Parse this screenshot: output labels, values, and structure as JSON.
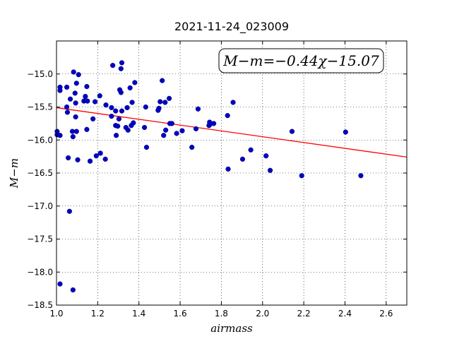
{
  "chart_data": {
    "type": "scatter",
    "title": "2021-11-24_023009",
    "xlabel": "airmass",
    "ylabel": "M−m",
    "xlim": [
      1.0,
      2.7
    ],
    "ylim": [
      -18.5,
      -14.5
    ],
    "y_inverted": true,
    "grid": true,
    "x_ticks": [
      1.0,
      1.2,
      1.4,
      1.6,
      1.8,
      2.0,
      2.2,
      2.4,
      2.6
    ],
    "x_tick_labels": [
      "1.0",
      "1.2",
      "1.4",
      "1.6",
      "1.8",
      "2.0",
      "2.2",
      "2.4",
      "2.6"
    ],
    "y_ticks": [
      -15.0,
      -15.5,
      -16.0,
      -16.5,
      -17.0,
      -17.5,
      -18.0,
      -18.5
    ],
    "y_tick_labels": [
      "−15.0",
      "−15.5",
      "−16.0",
      "−16.5",
      "−17.0",
      "−17.5",
      "−18.0",
      "−18.5"
    ],
    "annotation": "M−m=−0.44χ−15.07",
    "annotation_position": "top-right",
    "fit_line": {
      "slope": -0.44,
      "intercept": -15.07,
      "color": "#ff0000"
    },
    "marker_color": "#0000cc",
    "series": [
      {
        "x": [
          1.003,
          1.003,
          1.017,
          1.017,
          1.017,
          1.017,
          1.05,
          1.05,
          1.053,
          1.057,
          1.063,
          1.067,
          1.077,
          1.08,
          1.08,
          1.083,
          1.09,
          1.093,
          1.093,
          1.097,
          1.097,
          1.103,
          1.107,
          1.133,
          1.14,
          1.147,
          1.147,
          1.15,
          1.163,
          1.177,
          1.187,
          1.193,
          1.21,
          1.213,
          1.237,
          1.24,
          1.267,
          1.267,
          1.273,
          1.287,
          1.287,
          1.29,
          1.297,
          1.303,
          1.307,
          1.313,
          1.313,
          1.317,
          1.317,
          1.337,
          1.343,
          1.347,
          1.357,
          1.363,
          1.367,
          1.373,
          1.38,
          1.427,
          1.433,
          1.437,
          1.493,
          1.497,
          1.503,
          1.513,
          1.52,
          1.527,
          1.53,
          1.547,
          1.55,
          1.56,
          1.583,
          1.61,
          1.657,
          1.677,
          1.687,
          1.74,
          1.743,
          1.743,
          1.763,
          1.83,
          1.833,
          1.857,
          1.903,
          1.943,
          2.017,
          2.037,
          2.143,
          2.19,
          2.403,
          2.477
        ],
        "y": [
          -15.87,
          -15.92,
          -15.2,
          -15.25,
          -15.93,
          -18.18,
          -15.2,
          -15.5,
          -15.58,
          -16.27,
          -17.08,
          -15.38,
          -15.87,
          -15.95,
          -18.27,
          -14.97,
          -15.29,
          -15.65,
          -15.44,
          -15.14,
          -15.87,
          -16.3,
          -15.01,
          -15.41,
          -15.34,
          -15.19,
          -15.84,
          -15.41,
          -16.32,
          -15.68,
          -15.42,
          -16.24,
          -15.33,
          -16.2,
          -16.29,
          -15.47,
          -15.51,
          -15.64,
          -14.87,
          -15.78,
          -15.56,
          -15.93,
          -15.79,
          -15.68,
          -15.24,
          -14.92,
          -15.28,
          -14.83,
          -15.56,
          -15.81,
          -15.51,
          -15.85,
          -15.21,
          -15.78,
          -15.43,
          -15.74,
          -15.13,
          -15.81,
          -15.5,
          -16.11,
          -15.55,
          -15.52,
          -15.42,
          -15.1,
          -15.93,
          -15.43,
          -15.85,
          -15.37,
          -15.75,
          -15.75,
          -15.9,
          -15.86,
          -16.11,
          -15.83,
          -15.53,
          -15.78,
          -15.77,
          -15.73,
          -15.75,
          -15.63,
          -16.44,
          -15.43,
          -16.29,
          -16.15,
          -16.24,
          -16.46,
          -15.87,
          -16.54,
          -15.88,
          -16.54
        ]
      }
    ]
  }
}
